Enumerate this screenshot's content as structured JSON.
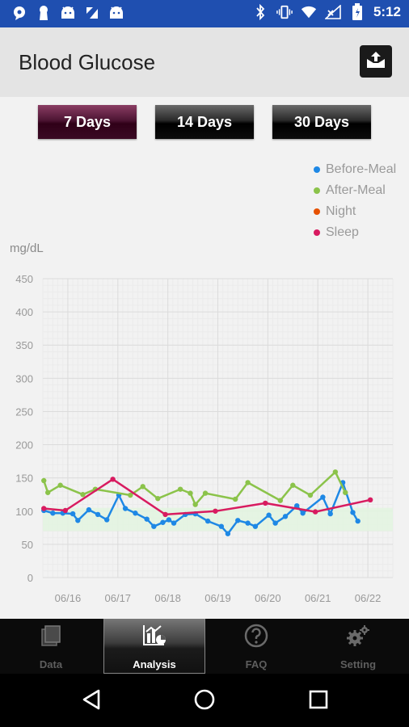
{
  "status_bar": {
    "time": "5:12"
  },
  "app_bar": {
    "title": "Blood Glucose",
    "share_icon": "share-icon"
  },
  "range_tabs": [
    {
      "label": "7 Days",
      "selected": true
    },
    {
      "label": "14 Days",
      "selected": false
    },
    {
      "label": "30 Days",
      "selected": false
    }
  ],
  "legend": [
    {
      "label": "Before-Meal",
      "color": "#1e88e5"
    },
    {
      "label": "After-Meal",
      "color": "#8bc34a"
    },
    {
      "label": "Night",
      "color": "#e65100"
    },
    {
      "label": "Sleep",
      "color": "#d81b60"
    }
  ],
  "chart_data": {
    "type": "line",
    "ylabel": "mg/dL",
    "ylim": [
      0,
      450
    ],
    "yticks": [
      "0",
      "50",
      "100",
      "150",
      "200",
      "250",
      "300",
      "350",
      "400",
      "450"
    ],
    "xlim": [
      15.5,
      22.5
    ],
    "xticks": [
      {
        "x": 16,
        "label": "06/16"
      },
      {
        "x": 17,
        "label": "06/17"
      },
      {
        "x": 18,
        "label": "06/18"
      },
      {
        "x": 19,
        "label": "06/19"
      },
      {
        "x": 20,
        "label": "06/20"
      },
      {
        "x": 21,
        "label": "06/21"
      },
      {
        "x": 22,
        "label": "06/22"
      }
    ],
    "target_band": [
      70,
      105
    ],
    "grid": true,
    "series": [
      {
        "name": "Before-Meal",
        "color": "#1e88e5",
        "points": [
          [
            15.52,
            101
          ],
          [
            15.7,
            97
          ],
          [
            15.9,
            97
          ],
          [
            16.1,
            96
          ],
          [
            16.2,
            86
          ],
          [
            16.42,
            102
          ],
          [
            16.6,
            95
          ],
          [
            16.78,
            87
          ],
          [
            17.02,
            124
          ],
          [
            17.15,
            104
          ],
          [
            17.35,
            97
          ],
          [
            17.58,
            88
          ],
          [
            17.72,
            77
          ],
          [
            17.9,
            83
          ],
          [
            18.02,
            87
          ],
          [
            18.12,
            82
          ],
          [
            18.35,
            95
          ],
          [
            18.55,
            96
          ],
          [
            18.8,
            85
          ],
          [
            19.07,
            77
          ],
          [
            19.2,
            66
          ],
          [
            19.4,
            86
          ],
          [
            19.6,
            82
          ],
          [
            19.75,
            77
          ],
          [
            20.02,
            94
          ],
          [
            20.15,
            82
          ],
          [
            20.35,
            92
          ],
          [
            20.58,
            108
          ],
          [
            20.7,
            97
          ],
          [
            21.1,
            121
          ],
          [
            21.25,
            96
          ],
          [
            21.5,
            143
          ],
          [
            21.7,
            98
          ],
          [
            21.8,
            85
          ]
        ]
      },
      {
        "name": "After-Meal",
        "color": "#8bc34a",
        "points": [
          [
            15.52,
            146
          ],
          [
            15.6,
            128
          ],
          [
            15.85,
            139
          ],
          [
            16.3,
            125
          ],
          [
            16.55,
            133
          ],
          [
            17.25,
            124
          ],
          [
            17.5,
            137
          ],
          [
            17.8,
            119
          ],
          [
            18.25,
            133
          ],
          [
            18.45,
            127
          ],
          [
            18.55,
            110
          ],
          [
            18.75,
            127
          ],
          [
            19.35,
            118
          ],
          [
            19.6,
            143
          ],
          [
            20.25,
            116
          ],
          [
            20.5,
            139
          ],
          [
            20.85,
            124
          ],
          [
            21.35,
            159
          ],
          [
            21.55,
            128
          ]
        ]
      },
      {
        "name": "Night",
        "color": "#e65100",
        "points": []
      },
      {
        "name": "Sleep",
        "color": "#d81b60",
        "points": [
          [
            15.52,
            104
          ],
          [
            15.95,
            101
          ],
          [
            16.9,
            148
          ],
          [
            17.95,
            95
          ],
          [
            18.95,
            100
          ],
          [
            19.95,
            112
          ],
          [
            20.95,
            99
          ],
          [
            22.05,
            117
          ]
        ]
      }
    ]
  },
  "bottom_nav": [
    {
      "label": "Data",
      "icon": "data-icon",
      "active": false
    },
    {
      "label": "Analysis",
      "icon": "analysis-icon",
      "active": true
    },
    {
      "label": "FAQ",
      "icon": "help-icon",
      "active": false
    },
    {
      "label": "Setting",
      "icon": "settings-icon",
      "active": false
    }
  ],
  "system_nav": {
    "back": "back-icon",
    "home": "home-icon",
    "recents": "recents-icon"
  }
}
